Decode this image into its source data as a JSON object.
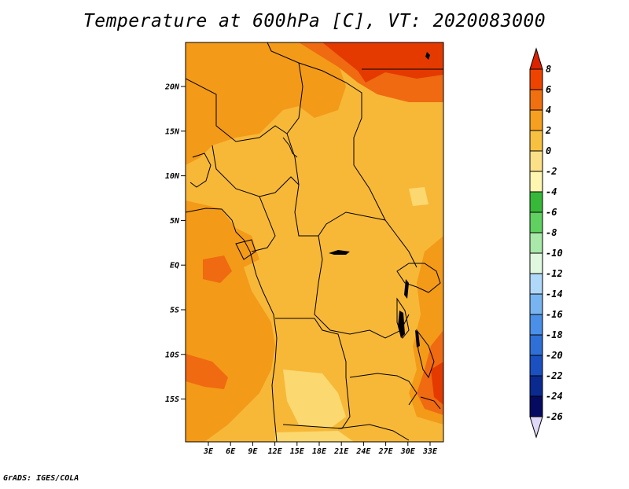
{
  "title": "Temperature at 600hPa [C], VT: 2020083000",
  "credit": "GrADS: IGES/COLA",
  "map": {
    "lat_labels": [
      "20N",
      "15N",
      "10N",
      "5N",
      "EQ",
      "5S",
      "10S",
      "15S"
    ],
    "lon_labels": [
      "3E",
      "6E",
      "9E",
      "12E",
      "15E",
      "18E",
      "21E",
      "24E",
      "27E",
      "30E",
      "33E"
    ]
  },
  "colorbar": {
    "labels": [
      "8",
      "6",
      "4",
      "2",
      "0",
      "-2",
      "-4",
      "-6",
      "-8",
      "-10",
      "-12",
      "-14",
      "-16",
      "-18",
      "-20",
      "-22",
      "-24",
      "-26"
    ],
    "colors": [
      "#dd2200",
      "#ee4400",
      "#f07010",
      "#f5a020",
      "#f8c040",
      "#fbe088",
      "#fdf5b0",
      "#38b838",
      "#60d060",
      "#a8e8a8",
      "#e0f8e0",
      "#b0d8f8",
      "#78b4f0",
      "#4a90e8",
      "#2e70d8",
      "#1a50c0",
      "#0a2a90",
      "#060a60",
      "#e0d8f8"
    ]
  },
  "field_colors": {
    "warm_4_6": "#ef6a10",
    "warm_2_4": "#f39a18",
    "warm_0_2": "#f7b838",
    "cool_m2_0": "#fbd870",
    "hot_6_8": "#e43a00"
  }
}
